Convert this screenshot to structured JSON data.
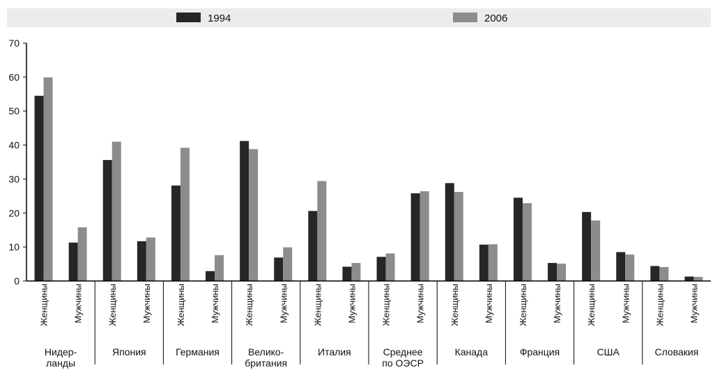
{
  "legend": {
    "items": [
      {
        "label": "1994",
        "color": "#262626"
      },
      {
        "label": "2006",
        "color": "#8c8c8c"
      }
    ]
  },
  "chart_data": {
    "type": "bar",
    "title": "",
    "xlabel": "",
    "ylabel": "",
    "ylim": [
      0,
      70
    ],
    "yticks": [
      "0",
      "10",
      "20",
      "30",
      "40",
      "50",
      "60",
      "70"
    ],
    "grid": false,
    "legend_position": "top",
    "groups": [
      {
        "label_lines": [
          "Нидер-",
          "ланды"
        ],
        "categories": [
          "Женщины",
          "Мужчины"
        ]
      },
      {
        "label_lines": [
          "Япония"
        ],
        "categories": [
          "Женщины",
          "Мужчины"
        ]
      },
      {
        "label_lines": [
          "Германия"
        ],
        "categories": [
          "Женщины",
          "Мужчины"
        ]
      },
      {
        "label_lines": [
          "Велико-",
          "британия"
        ],
        "categories": [
          "Женщины",
          "Мужчины"
        ]
      },
      {
        "label_lines": [
          "Италия"
        ],
        "categories": [
          "Женщины",
          "Мужчины"
        ]
      },
      {
        "label_lines": [
          "Среднее",
          "по ОЭСР"
        ],
        "categories": [
          "Женщины",
          "Мужчины"
        ]
      },
      {
        "label_lines": [
          "Канада"
        ],
        "categories": [
          "Женщины",
          "Мужчины"
        ]
      },
      {
        "label_lines": [
          "Франция"
        ],
        "categories": [
          "Женщины",
          "Мужчины"
        ]
      },
      {
        "label_lines": [
          "США"
        ],
        "categories": [
          "Женщины",
          "Мужчины"
        ]
      },
      {
        "label_lines": [
          "Словакия"
        ],
        "categories": [
          "Женщины",
          "Мужчины"
        ]
      }
    ],
    "series": [
      {
        "name": "1994",
        "color": "#262626",
        "values": [
          54.5,
          11.3,
          35.6,
          11.7,
          28.1,
          2.9,
          41.2,
          6.9,
          20.6,
          4.2,
          7.1,
          25.8,
          28.8,
          10.7,
          24.5,
          5.3,
          20.3,
          8.5,
          4.4,
          1.3
        ]
      },
      {
        "name": "2006",
        "color": "#8c8c8c",
        "values": [
          59.9,
          15.8,
          41.0,
          12.8,
          39.2,
          7.6,
          38.8,
          9.9,
          29.4,
          5.3,
          8.1,
          26.4,
          26.2,
          10.8,
          22.9,
          5.1,
          17.8,
          7.8,
          4.1,
          1.2
        ]
      }
    ]
  }
}
